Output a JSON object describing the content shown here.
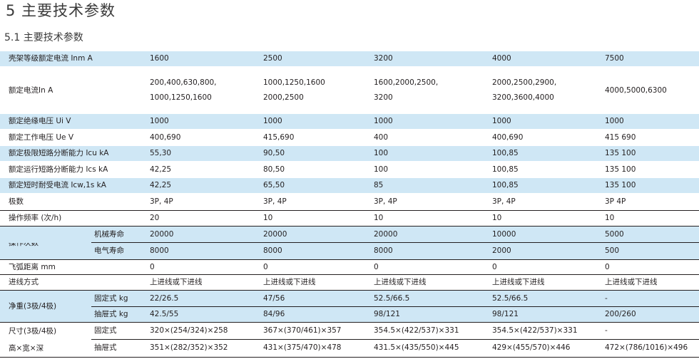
{
  "heading": "5  主要技术参数",
  "subheading": "5.1 主要技术参数",
  "header_row": {
    "label": "壳架等级额定电流  Inm  A",
    "values": [
      "1600",
      "2500",
      "3200",
      "4000",
      "7500"
    ]
  },
  "rows": {
    "rated_current": {
      "label": "额定电流In   A",
      "values": [
        [
          "200,400,630,800,",
          "1000,1250,1600"
        ],
        [
          "1000,1250,1600",
          "2000,2500"
        ],
        [
          "1600,2000,2500,",
          "3200"
        ],
        [
          "2000,2500,2900,",
          "3200,3600,4000"
        ],
        [
          "4000,5000,6300"
        ]
      ]
    },
    "ui": {
      "label": "额定绝缘电压  Ui  V",
      "values": [
        "1000",
        "1000",
        "1000",
        "1000",
        "1000"
      ]
    },
    "ue": {
      "label": "额定工作电压  Ue  V",
      "values": [
        "400,690",
        "415,690",
        "400",
        "400,690",
        "415  690"
      ]
    },
    "icu": {
      "label": "额定极限短路分断能力  Icu  kA",
      "values": [
        "55,30",
        "90,50",
        "100",
        "100,85",
        "135  100"
      ]
    },
    "ics": {
      "label": "额定运行短路分断能力  Ics  kA",
      "values": [
        "42,25",
        "80,50",
        "100",
        "100,85",
        "135  100"
      ]
    },
    "icw": {
      "label": "额定短时耐受电流  Icw,1s  kA",
      "values": [
        "42,25",
        "65,50",
        "85",
        "100,85",
        "135  100"
      ]
    },
    "poles": {
      "label": "极数",
      "values": [
        "3P, 4P",
        "3P, 4P",
        "3P, 4P",
        "3P, 4P",
        "3P    4P"
      ]
    },
    "op_freq": {
      "label": "操作频率    (次/h)",
      "values": [
        "20",
        "10",
        "10",
        "10",
        "10"
      ]
    },
    "op_count": {
      "label": "操作次数",
      "mech": {
        "label": "机械寿命",
        "values": [
          "20000",
          "20000",
          "20000",
          "10000",
          "5000"
        ]
      },
      "elec": {
        "label": "电气寿命",
        "values": [
          "8000",
          "8000",
          "8000",
          "2000",
          "500"
        ]
      }
    },
    "arc": {
      "label": "飞弧距离    mm",
      "values": [
        "0",
        "0",
        "0",
        "0",
        "0"
      ]
    },
    "wiring": {
      "label": "进线方式",
      "values": [
        "上进线或下进线",
        "上进线或下进线",
        "上进线或下进线",
        "上进线或下进线",
        "上进线或下进线"
      ]
    },
    "weight": {
      "label": "净重(3极/4极)",
      "fixed": {
        "label": "固定式  kg",
        "values": [
          "22/26.5",
          "47/56",
          "52.5/66.5",
          "52.5/66.5",
          "-"
        ]
      },
      "draw": {
        "label": "抽屉式  kg",
        "values": [
          "42.5/55",
          "84/96",
          "98/121",
          "98/121",
          "200/260"
        ]
      }
    },
    "size": {
      "label1": "尺寸(3极/4极)",
      "label2": "高×宽×深",
      "fixed": {
        "label": "固定式",
        "values": [
          "320×(254/324)×258",
          "367×(370/461)×357",
          "354.5×(422/537)×331",
          "354.5×(422/537)×331",
          "-"
        ]
      },
      "draw": {
        "label": "抽屉式",
        "values": [
          "351×(282/352)×352",
          "431×(375/470)×478",
          "431.5×(435/550)×445",
          "429×(455/570)×446",
          "472×(786/1016)×496"
        ]
      }
    }
  }
}
